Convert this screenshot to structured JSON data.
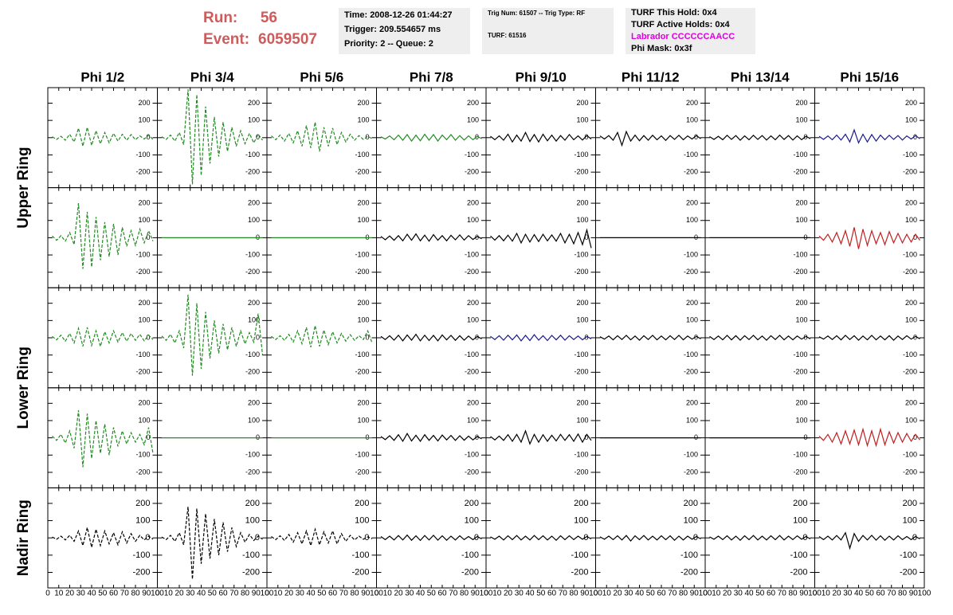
{
  "header": {
    "run_label": "Run:",
    "run": 56,
    "event_label": "Event:",
    "event": 6059507,
    "box1": [
      "Time: 2008-12-26 01:44:27",
      "Trigger: 209.554657 ms",
      "Priority: 2 -- Queue: 2"
    ],
    "box2": [
      "Trig Num: 61507 -- Trig Type: RF",
      "TURF: 61516"
    ],
    "box3": [
      "TURF This Hold: 0x4",
      "TURF Active Holds: 0x4",
      "Labrador CCCCCCAACC",
      "Phi Mask: 0x3f"
    ],
    "box3_colors": [
      "#000000",
      "#000000",
      "#e000e0",
      "#000000"
    ]
  },
  "columns": [
    "Phi 1/2",
    "Phi 3/4",
    "Phi 5/6",
    "Phi 7/8",
    "Phi 9/10",
    "Phi 11/12",
    "Phi 13/14",
    "Phi 15/16"
  ],
  "ring_labels": [
    "Upper Ring",
    "Lower Ring",
    "Nadir Ring"
  ],
  "axis": {
    "xlim": [
      0,
      100
    ],
    "xticks": [
      0,
      10,
      20,
      30,
      40,
      50,
      60,
      70,
      80,
      90,
      100
    ],
    "ylim": [
      -290,
      290
    ],
    "yticks": [
      -200,
      -100,
      0,
      100,
      200
    ],
    "x": [
      4,
      8,
      12,
      16,
      20,
      24,
      28,
      32,
      36,
      40,
      44,
      48,
      52,
      56,
      60,
      64,
      68,
      72,
      76,
      80,
      84,
      88,
      92,
      96
    ]
  },
  "panels": [
    [
      {
        "color": "#228b22",
        "style": "dashed",
        "values": [
          5,
          -10,
          8,
          -15,
          20,
          -25,
          55,
          -50,
          60,
          -45,
          40,
          -35,
          30,
          -30,
          25,
          -20,
          20,
          -15,
          18,
          -12,
          10,
          -8,
          15,
          -10
        ]
      },
      {
        "color": "#228b22",
        "style": "dashed",
        "values": [
          5,
          -10,
          15,
          -20,
          30,
          -40,
          280,
          -270,
          250,
          -220,
          180,
          -150,
          120,
          -110,
          90,
          -80,
          60,
          -50,
          40,
          -35,
          25,
          -30,
          20,
          -15
        ]
      },
      {
        "color": "#228b22",
        "style": "dashed",
        "values": [
          10,
          -12,
          15,
          -20,
          25,
          -30,
          40,
          -50,
          70,
          -60,
          90,
          -80,
          60,
          -50,
          55,
          -40,
          30,
          -25,
          20,
          -15,
          12,
          -10,
          8,
          -6
        ]
      },
      {
        "color": "#228b22",
        "style": "solid",
        "values": [
          5,
          -8,
          10,
          -12,
          15,
          -15,
          18,
          -20,
          15,
          -18,
          20,
          -15,
          18,
          -20,
          15,
          -12,
          18,
          -15,
          12,
          -14,
          10,
          -12,
          8,
          -6
        ]
      },
      {
        "color": "#000000",
        "style": "solid",
        "values": [
          8,
          -12,
          10,
          -15,
          20,
          -25,
          15,
          -20,
          30,
          -22,
          18,
          -25,
          20,
          -18,
          15,
          -20,
          12,
          -15,
          18,
          -12,
          10,
          -14,
          12,
          -8
        ]
      },
      {
        "color": "#000000",
        "style": "solid",
        "values": [
          10,
          -8,
          12,
          -15,
          30,
          -45,
          35,
          -20,
          15,
          -18,
          12,
          -15,
          14,
          -12,
          10,
          -16,
          12,
          -10,
          14,
          -12,
          10,
          -8,
          12,
          -6
        ]
      },
      {
        "color": "#000000",
        "style": "solid",
        "values": [
          6,
          -10,
          8,
          -12,
          14,
          -10,
          12,
          -15,
          10,
          -12,
          14,
          -10,
          12,
          -14,
          10,
          -12,
          15,
          -10,
          12,
          -14,
          10,
          -12,
          8,
          -6
        ]
      },
      {
        "color": "#1a1a8c",
        "style": "solid",
        "values": [
          8,
          -10,
          10,
          -12,
          15,
          -14,
          20,
          -25,
          45,
          -30,
          20,
          -25,
          18,
          -20,
          15,
          -12,
          14,
          -10,
          12,
          -14,
          10,
          -8,
          12,
          -6
        ]
      }
    ],
    [
      {
        "color": "#228b22",
        "style": "dashed",
        "values": [
          10,
          -15,
          12,
          -20,
          30,
          -40,
          200,
          -180,
          150,
          -170,
          120,
          -130,
          90,
          -110,
          80,
          -100,
          60,
          -50,
          40,
          -45,
          50,
          -30,
          40,
          -20
        ]
      },
      {
        "color": "#228b22",
        "style": "solid",
        "values": [
          0,
          0,
          0,
          0,
          0,
          0,
          0,
          0,
          0,
          0,
          0,
          0,
          0,
          0,
          0,
          0,
          0,
          0,
          0,
          0,
          0,
          0,
          0,
          0
        ]
      },
      {
        "color": "#228b22",
        "style": "solid",
        "values": [
          0,
          0,
          0,
          0,
          0,
          0,
          0,
          0,
          0,
          0,
          0,
          0,
          0,
          0,
          0,
          0,
          0,
          0,
          0,
          0,
          0,
          0,
          0,
          0
        ]
      },
      {
        "color": "#000000",
        "style": "solid",
        "values": [
          8,
          -12,
          10,
          -15,
          12,
          -18,
          20,
          -15,
          22,
          -18,
          15,
          -20,
          18,
          -15,
          12,
          -18,
          14,
          -12,
          16,
          -14,
          12,
          -10,
          8,
          -6
        ]
      },
      {
        "color": "#000000",
        "style": "solid",
        "values": [
          10,
          -14,
          12,
          -18,
          15,
          -20,
          25,
          -30,
          20,
          -25,
          18,
          -22,
          20,
          -18,
          16,
          -20,
          25,
          -30,
          20,
          -35,
          30,
          -40,
          45,
          -60
        ]
      },
      {
        "color": "#000000",
        "style": "solid",
        "values": [
          0,
          0,
          0,
          0,
          0,
          0,
          0,
          0,
          0,
          0,
          0,
          0,
          0,
          0,
          0,
          0,
          0,
          0,
          0,
          0,
          0,
          0,
          0,
          0
        ]
      },
      {
        "color": "#000000",
        "style": "solid",
        "values": [
          0,
          0,
          0,
          0,
          0,
          0,
          0,
          0,
          0,
          0,
          0,
          0,
          0,
          0,
          0,
          0,
          0,
          0,
          0,
          0,
          0,
          0,
          0,
          0
        ]
      },
      {
        "color": "#c02020",
        "style": "solid",
        "values": [
          10,
          -15,
          20,
          -25,
          30,
          -35,
          40,
          -50,
          60,
          -65,
          50,
          -45,
          40,
          -35,
          30,
          -40,
          35,
          -30,
          25,
          -30,
          20,
          -25,
          20,
          -15
        ]
      }
    ],
    [
      {
        "color": "#228b22",
        "style": "dashed",
        "values": [
          8,
          -12,
          15,
          -20,
          25,
          -30,
          55,
          -50,
          60,
          -45,
          40,
          -50,
          35,
          -30,
          40,
          -25,
          30,
          -20,
          25,
          -15,
          20,
          -18,
          15,
          -10
        ]
      },
      {
        "color": "#228b22",
        "style": "dashed",
        "values": [
          10,
          -15,
          20,
          -30,
          40,
          -60,
          250,
          -220,
          200,
          -180,
          150,
          -120,
          100,
          -90,
          80,
          -70,
          60,
          -50,
          40,
          -35,
          30,
          -25,
          140,
          -100
        ]
      },
      {
        "color": "#228b22",
        "style": "dashed",
        "values": [
          8,
          -10,
          12,
          -15,
          20,
          -25,
          40,
          -35,
          60,
          -55,
          70,
          -50,
          45,
          -40,
          35,
          -30,
          25,
          -20,
          18,
          -15,
          12,
          -10,
          40,
          -30
        ]
      },
      {
        "color": "#000000",
        "style": "solid",
        "values": [
          8,
          -10,
          12,
          -14,
          15,
          -18,
          16,
          -14,
          20,
          -18,
          15,
          -16,
          14,
          -18,
          16,
          -12,
          14,
          -15,
          12,
          -14,
          10,
          -12,
          8,
          -6
        ]
      },
      {
        "color": "#1a1a8c",
        "style": "solid",
        "values": [
          8,
          -10,
          12,
          -14,
          15,
          -12,
          16,
          -18,
          14,
          -16,
          18,
          -14,
          12,
          -16,
          14,
          -12,
          15,
          -14,
          12,
          -10,
          10,
          -12,
          8,
          -6
        ]
      },
      {
        "color": "#000000",
        "style": "solid",
        "values": [
          6,
          -8,
          10,
          -12,
          12,
          -10,
          14,
          -12,
          10,
          -14,
          12,
          -10,
          14,
          -12,
          10,
          -12,
          12,
          -10,
          14,
          -12,
          10,
          -8,
          8,
          -6
        ]
      },
      {
        "color": "#000000",
        "style": "solid",
        "values": [
          8,
          -10,
          10,
          -12,
          14,
          -12,
          12,
          -14,
          12,
          -10,
          14,
          -12,
          10,
          -14,
          12,
          -10,
          14,
          -12,
          10,
          -12,
          10,
          -8,
          8,
          -6
        ]
      },
      {
        "color": "#000000",
        "style": "solid",
        "values": [
          6,
          -8,
          10,
          -10,
          12,
          -12,
          14,
          -10,
          12,
          -14,
          10,
          -12,
          14,
          -12,
          10,
          -12,
          12,
          -14,
          10,
          -10,
          12,
          -8,
          8,
          -6
        ]
      }
    ],
    [
      {
        "color": "#228b22",
        "style": "dashed",
        "values": [
          10,
          -15,
          20,
          -30,
          40,
          -60,
          160,
          -170,
          140,
          -120,
          100,
          -90,
          80,
          -100,
          60,
          -50,
          40,
          -35,
          30,
          -25,
          20,
          -40,
          60,
          -90
        ]
      },
      {
        "color": "#228b22",
        "style": "solid",
        "values": [
          0,
          0,
          0,
          0,
          0,
          0,
          0,
          0,
          0,
          0,
          0,
          0,
          0,
          0,
          0,
          0,
          0,
          0,
          0,
          0,
          0,
          0,
          0,
          0
        ]
      },
      {
        "color": "#228b22",
        "style": "solid",
        "values": [
          0,
          0,
          0,
          0,
          0,
          0,
          0,
          0,
          0,
          0,
          0,
          0,
          0,
          0,
          0,
          0,
          0,
          0,
          0,
          0,
          0,
          0,
          0,
          0
        ]
      },
      {
        "color": "#000000",
        "style": "solid",
        "values": [
          8,
          -10,
          12,
          -15,
          18,
          -20,
          25,
          -18,
          15,
          -20,
          18,
          -15,
          14,
          -18,
          16,
          -12,
          14,
          -15,
          12,
          -14,
          10,
          -12,
          8,
          -6
        ]
      },
      {
        "color": "#000000",
        "style": "solid",
        "values": [
          8,
          -12,
          10,
          -15,
          18,
          -20,
          20,
          -25,
          40,
          -35,
          20,
          -25,
          18,
          -20,
          15,
          -18,
          20,
          -15,
          18,
          -20,
          22,
          -25,
          20,
          -15
        ]
      },
      {
        "color": "#000000",
        "style": "solid",
        "values": [
          0,
          0,
          0,
          0,
          0,
          0,
          0,
          0,
          0,
          0,
          0,
          0,
          0,
          0,
          0,
          0,
          0,
          0,
          0,
          0,
          0,
          0,
          0,
          0
        ]
      },
      {
        "color": "#000000",
        "style": "solid",
        "values": [
          0,
          0,
          0,
          0,
          0,
          0,
          0,
          0,
          0,
          0,
          0,
          0,
          0,
          0,
          0,
          0,
          0,
          0,
          0,
          0,
          0,
          0,
          0,
          0
        ]
      },
      {
        "color": "#c02020",
        "style": "solid",
        "values": [
          10,
          -15,
          20,
          -25,
          30,
          -35,
          40,
          -35,
          45,
          -40,
          50,
          -45,
          40,
          -45,
          50,
          -40,
          35,
          -30,
          30,
          -25,
          25,
          -20,
          20,
          -12
        ]
      }
    ],
    [
      {
        "color": "#000000",
        "style": "dashed",
        "values": [
          5,
          -8,
          10,
          -12,
          15,
          -20,
          40,
          -45,
          60,
          -55,
          50,
          -45,
          40,
          -35,
          30,
          -40,
          35,
          -30,
          25,
          -20,
          15,
          -12,
          10,
          -8
        ]
      },
      {
        "color": "#000000",
        "style": "dashed",
        "values": [
          5,
          -10,
          15,
          -20,
          30,
          -40,
          180,
          -240,
          170,
          -150,
          140,
          -120,
          110,
          -100,
          90,
          -80,
          60,
          -50,
          30,
          -25,
          20,
          -15,
          10,
          -8
        ]
      },
      {
        "color": "#000000",
        "style": "dashed",
        "values": [
          8,
          -10,
          12,
          -15,
          20,
          -25,
          30,
          -35,
          40,
          -45,
          50,
          -40,
          35,
          -30,
          40,
          -35,
          25,
          -20,
          15,
          -12,
          10,
          -8,
          6,
          -5
        ]
      },
      {
        "color": "#000000",
        "style": "solid",
        "values": [
          8,
          -10,
          10,
          -12,
          14,
          -12,
          16,
          -14,
          12,
          -15,
          14,
          -12,
          15,
          -13,
          12,
          -14,
          10,
          -12,
          12,
          -10,
          8,
          -10,
          8,
          -6
        ]
      },
      {
        "color": "#000000",
        "style": "solid",
        "values": [
          6,
          -8,
          10,
          -12,
          12,
          -10,
          14,
          -12,
          10,
          -12,
          14,
          -10,
          12,
          -12,
          10,
          -14,
          12,
          -10,
          12,
          -10,
          10,
          -8,
          8,
          -6
        ]
      },
      {
        "color": "#000000",
        "style": "solid",
        "values": [
          6,
          -8,
          10,
          -10,
          12,
          -12,
          14,
          -18,
          12,
          -10,
          14,
          -12,
          10,
          -12,
          12,
          -10,
          12,
          -14,
          10,
          -12,
          10,
          -8,
          8,
          -6
        ]
      },
      {
        "color": "#000000",
        "style": "solid",
        "values": [
          6,
          -8,
          10,
          -10,
          12,
          -12,
          10,
          -14,
          12,
          -10,
          14,
          -12,
          10,
          -12,
          12,
          -10,
          14,
          -12,
          10,
          -10,
          12,
          -8,
          8,
          -6
        ]
      },
      {
        "color": "#000000",
        "style": "solid",
        "values": [
          8,
          -10,
          10,
          -12,
          14,
          -12,
          30,
          -60,
          25,
          -20,
          14,
          -12,
          15,
          -13,
          12,
          -14,
          10,
          -12,
          12,
          -10,
          8,
          -10,
          8,
          -6
        ]
      }
    ]
  ]
}
